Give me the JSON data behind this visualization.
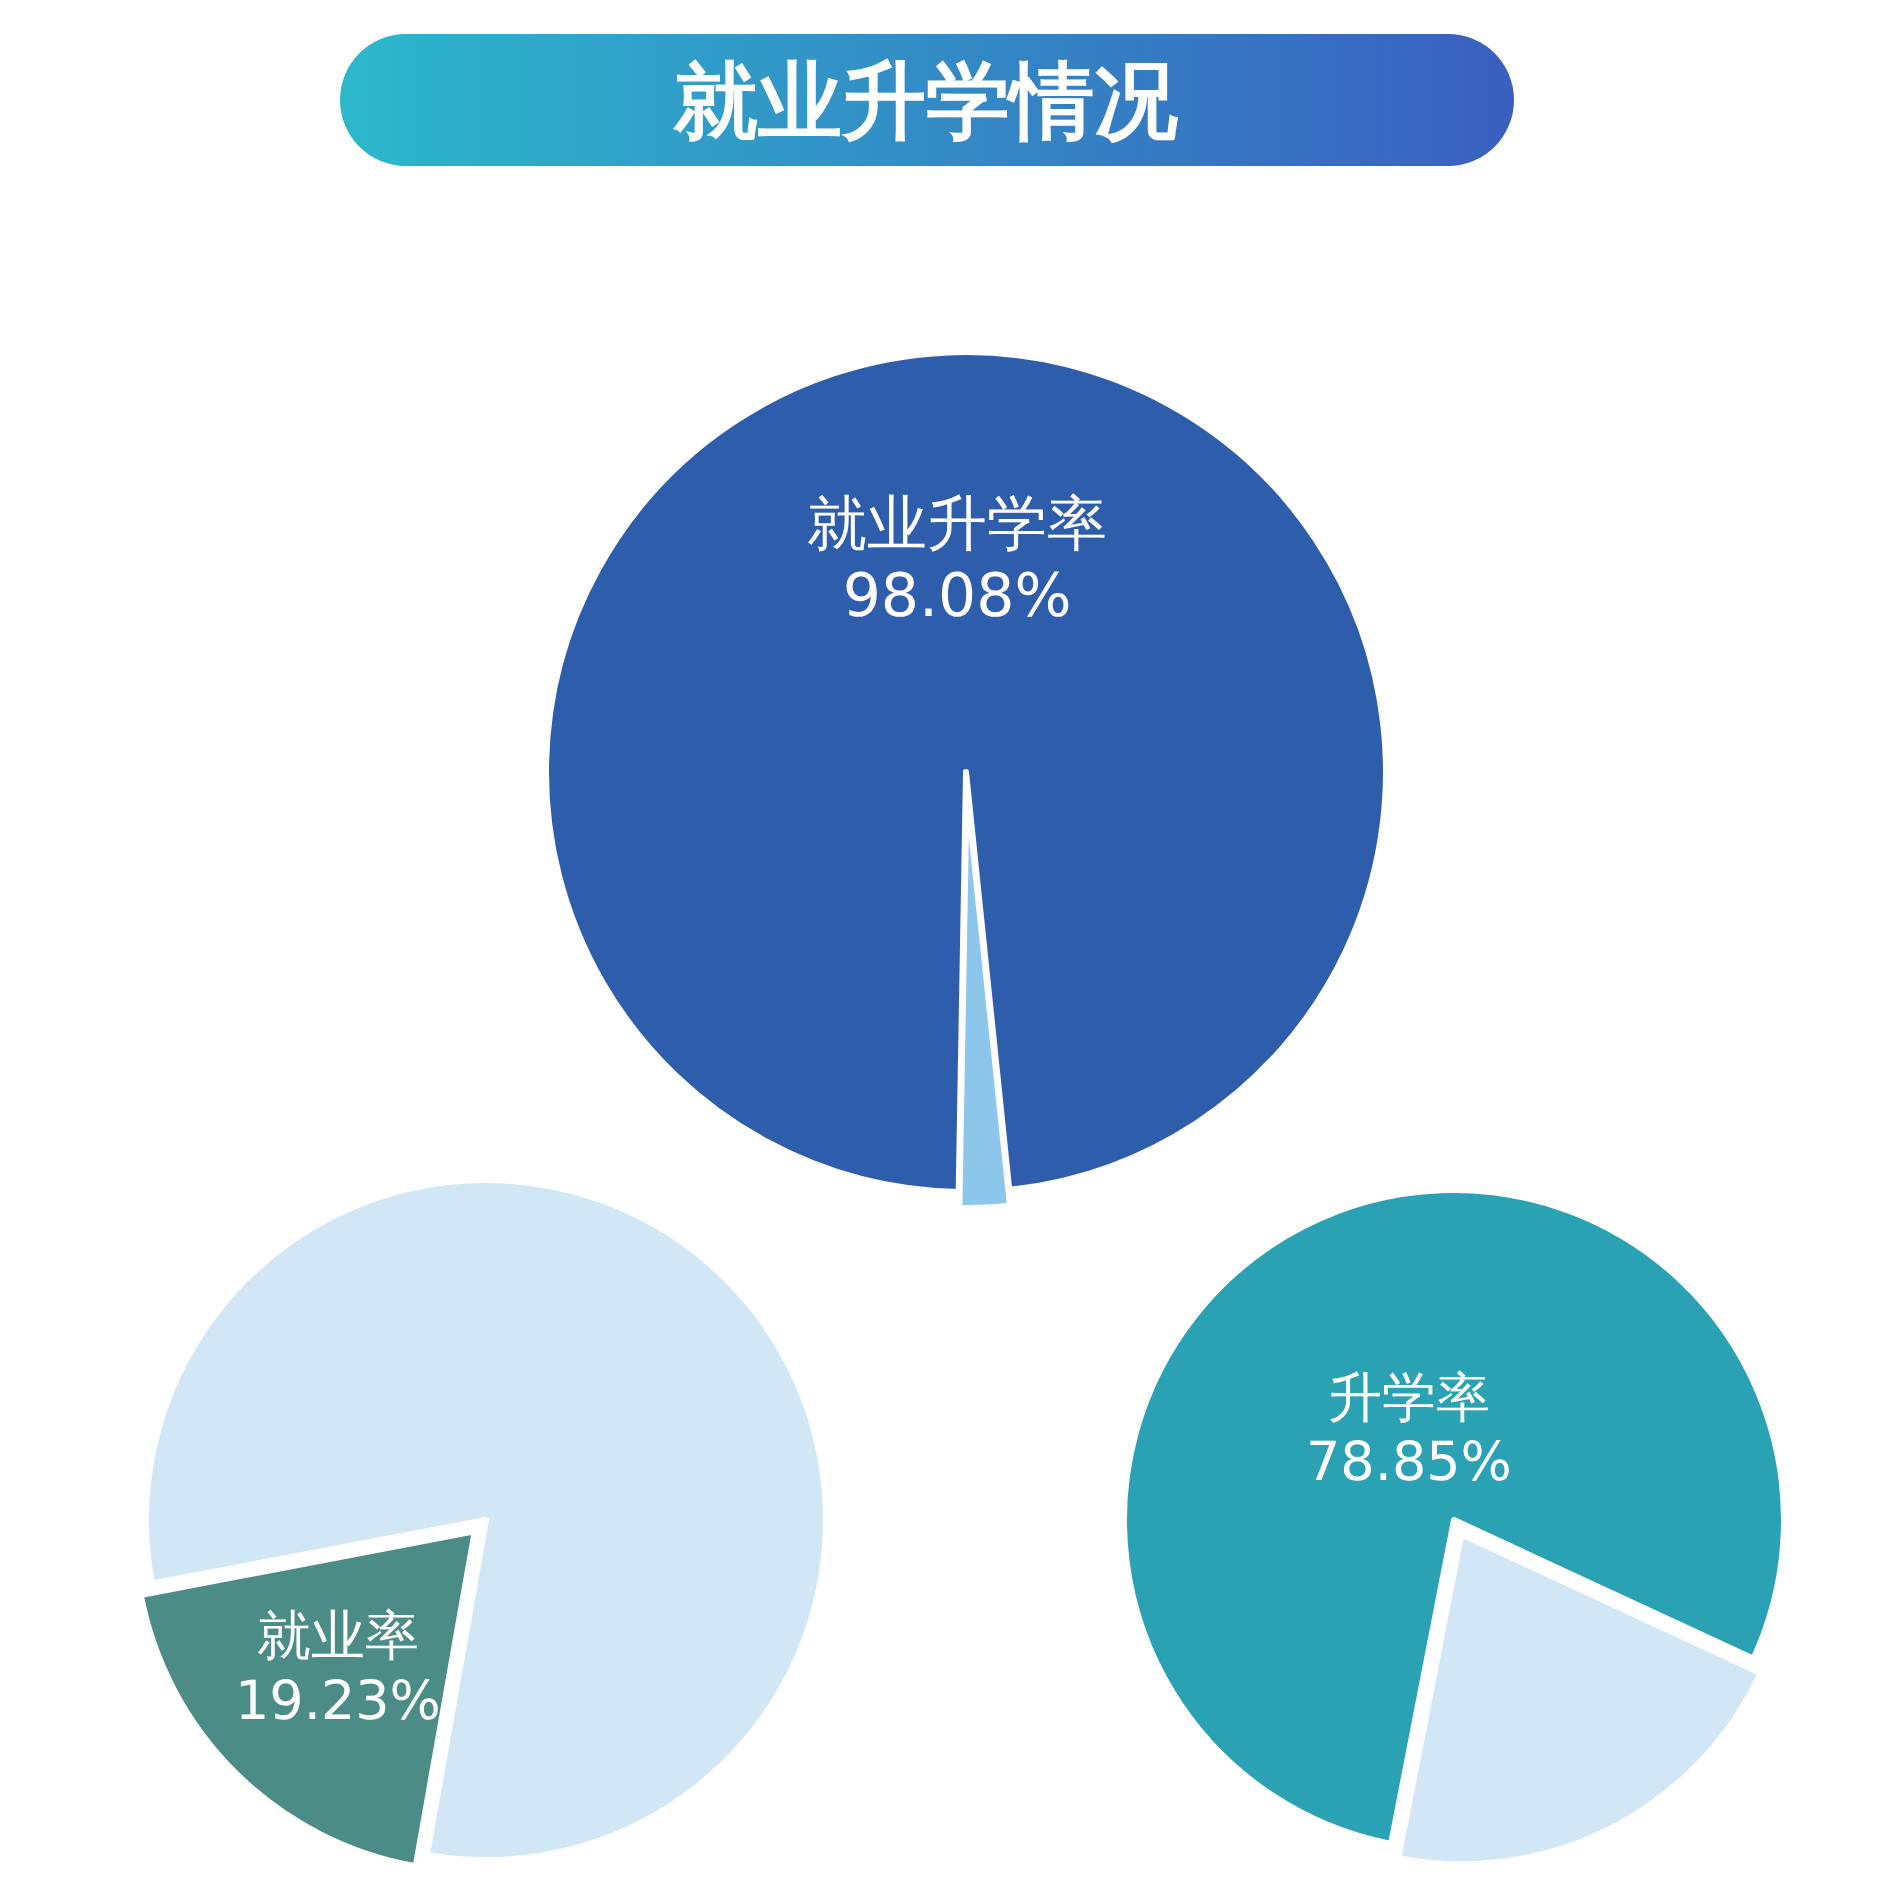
{
  "chart_data": [
    {
      "type": "pie",
      "title": "就业升学情况",
      "categories": [
        "就业升学率",
        null
      ],
      "values": [
        98.08,
        1.92
      ],
      "colors": [
        "#2e5dac",
        "#8cc6ea"
      ],
      "value_labels": [
        "98.08%",
        null
      ]
    },
    {
      "type": "pie",
      "categories": [
        "就业率",
        null
      ],
      "values": [
        19.23,
        80.77
      ],
      "colors": [
        "#4b8c87",
        "#d2e7f5"
      ],
      "value_labels": [
        "19.23%",
        null
      ]
    },
    {
      "type": "pie",
      "categories": [
        "升学率",
        null
      ],
      "values": [
        78.85,
        21.15
      ],
      "colors": [
        "#2aa2b4",
        "#d2e7f5"
      ],
      "value_labels": [
        "78.85%",
        null
      ]
    }
  ]
}
